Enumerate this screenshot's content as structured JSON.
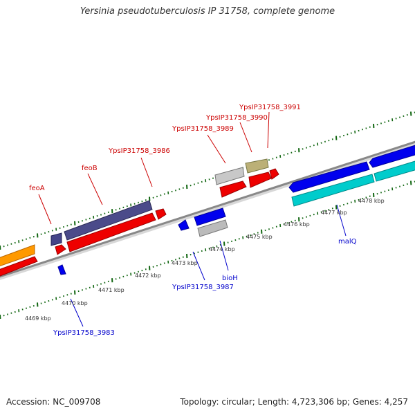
{
  "title": "Yersinia pseudotuberculosis IP 31758, complete genome",
  "accession_text": "Accession: NC_009708",
  "stats_text": "Topology: circular; Length: 4,723,306 bp; Genes: 4,257",
  "colors": {
    "backbone": "#888888",
    "forward_label": "#cc0000",
    "reverse_label": "#0000cc",
    "ruler_tick": "#116611"
  },
  "ruler_labels": [
    "4469 kbp",
    "4470 kbp",
    "4471 kbp",
    "4472 kbp",
    "4473 kbp",
    "4474 kbp",
    "4475 kbp",
    "4476 kbp",
    "4477 kbp",
    "4478 kbp"
  ],
  "gene_labels": {
    "feoA": "feoA",
    "feoB": "feoB",
    "g3986": "YpsIP31758_3986",
    "g3989": "YpsIP31758_3989",
    "g3990": "YpsIP31758_3990",
    "g3991": "YpsIP31758_3991",
    "g3983": "YpsIP31758_3983",
    "g3987": "YpsIP31758_3987",
    "bioH": "bioH",
    "malQ": "malQ"
  }
}
